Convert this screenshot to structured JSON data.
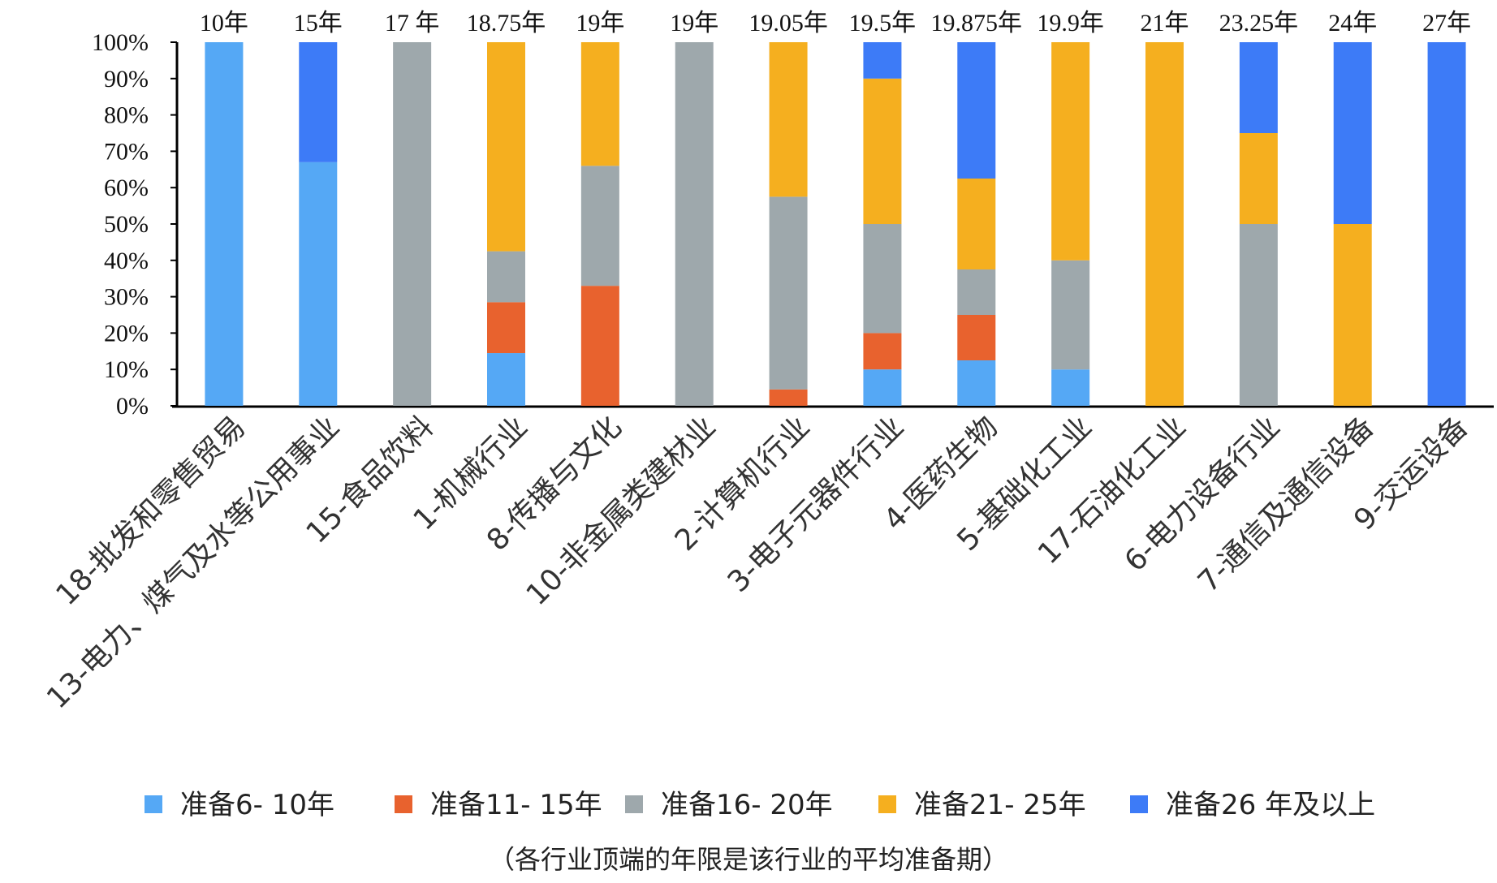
{
  "chart_data": {
    "type": "bar",
    "stacked": true,
    "percent": true,
    "title": "",
    "xlabel": "",
    "ylabel": "",
    "ylim": [
      0,
      100
    ],
    "yticks": [
      "0%",
      "10%",
      "20%",
      "30%",
      "40%",
      "50%",
      "60%",
      "70%",
      "80%",
      "90%",
      "100%"
    ],
    "categories": [
      "18-批发和零售贸易",
      "13-电力、煤气及水等公用事业",
      "15-食品饮料",
      "1-机械行业",
      "8-传播与文化",
      "10-非金属类建材业",
      "2-计算机行业",
      "3-电子元器件行业",
      "4-医药生物",
      "5-基础化工业",
      "17-石油化工业",
      "6-电力设备行业",
      "7-通信及通信设备",
      "9-交运设备"
    ],
    "top_labels": [
      "10年",
      "15年",
      "17 年",
      "18.75年",
      "19年",
      "19年",
      "19.05年",
      "19.5年",
      "19.875年",
      "19.9年",
      "21年",
      "23.25年",
      "24年",
      "27年"
    ],
    "series": [
      {
        "name": "准备6- 10年",
        "color": "#55A8F5",
        "values": [
          100,
          67,
          0,
          14.5,
          0,
          0,
          0,
          10,
          12.5,
          10,
          0,
          0,
          0,
          0
        ]
      },
      {
        "name": "准备11- 15年",
        "color": "#E8622E",
        "values": [
          0,
          0,
          0,
          14,
          33,
          0,
          4.5,
          10,
          12.5,
          0,
          0,
          0,
          0,
          0
        ]
      },
      {
        "name": "准备16- 20年",
        "color": "#9EA8AC",
        "values": [
          0,
          0,
          100,
          14,
          33,
          100,
          53,
          30,
          12.5,
          30,
          0,
          50,
          0,
          0
        ]
      },
      {
        "name": "准备21- 25年",
        "color": "#F5AF1F",
        "values": [
          0,
          0,
          0,
          57.5,
          34,
          0,
          42.5,
          40,
          25,
          60,
          100,
          25,
          50,
          0
        ]
      },
      {
        "name": "准备26 年及以上",
        "color": "#3D7BF7",
        "values": [
          0,
          33,
          0,
          0,
          0,
          0,
          0,
          10,
          37.5,
          0,
          0,
          25,
          50,
          100
        ]
      }
    ],
    "legend_position": "bottom",
    "note": "（各行业顶端的年限是该行业的平均准备期）"
  }
}
